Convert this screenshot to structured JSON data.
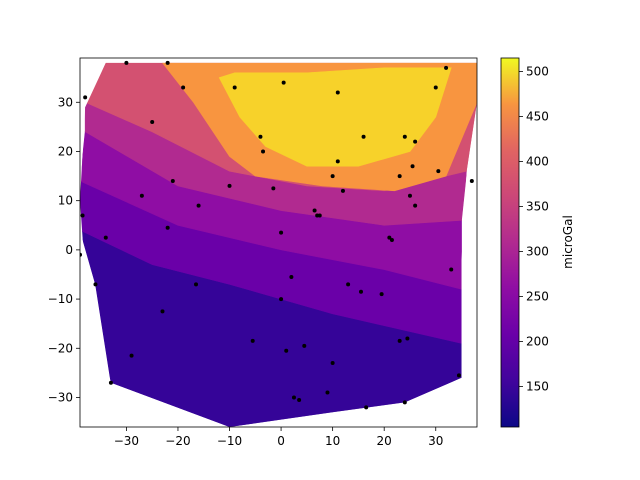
{
  "chart_data": {
    "type": "contour",
    "colormap": "plasma",
    "xlim": [
      -39,
      38
    ],
    "ylim": [
      -36,
      39
    ],
    "x_ticks": [
      -30,
      -20,
      -10,
      0,
      10,
      20,
      30
    ],
    "y_ticks": [
      -30,
      -20,
      -10,
      0,
      10,
      20,
      30
    ],
    "colorbar": {
      "label": "microGal",
      "range": [
        105,
        515
      ],
      "ticks": [
        150,
        200,
        250,
        300,
        350,
        400,
        450,
        500
      ]
    },
    "hull": [
      [
        -34,
        38
      ],
      [
        -21,
        38
      ],
      [
        38,
        38
      ],
      [
        38,
        30
      ],
      [
        36,
        16
      ],
      [
        35,
        -2
      ],
      [
        35,
        -26
      ],
      [
        24,
        -31
      ],
      [
        10,
        -33
      ],
      [
        -10,
        -36
      ],
      [
        -33,
        -27
      ],
      [
        -36,
        -15
      ],
      [
        -38,
        -5
      ],
      [
        -39,
        10
      ],
      [
        -38,
        29
      ]
    ],
    "levels": [
      {
        "value": 150,
        "color": "#350498"
      },
      {
        "value": 200,
        "color": "#6a00a8"
      },
      {
        "value": 250,
        "color": "#8f0da4"
      },
      {
        "value": 300,
        "color": "#b12a90"
      },
      {
        "value": 350,
        "color": "#d35171"
      },
      {
        "value": 400,
        "color": "#e16462"
      },
      {
        "value": 450,
        "color": "#f89540"
      },
      {
        "value": 500,
        "color": "#f7d22a"
      }
    ],
    "bands": [
      {
        "color": "#350498",
        "poly": [
          [
            -39,
            4
          ],
          [
            -36,
            -7
          ],
          [
            -33,
            -27
          ],
          [
            -10,
            -36
          ],
          [
            10,
            -33
          ],
          [
            24,
            -31
          ],
          [
            35,
            -26
          ],
          [
            35,
            -19
          ],
          [
            10,
            -13
          ],
          [
            -10,
            -7
          ],
          [
            -25,
            -3
          ],
          [
            -39,
            4
          ]
        ]
      },
      {
        "color": "#6a00a8",
        "poly": [
          [
            -39,
            4
          ],
          [
            -25,
            -3
          ],
          [
            -10,
            -7
          ],
          [
            10,
            -13
          ],
          [
            35,
            -19
          ],
          [
            35,
            -8
          ],
          [
            20,
            -4
          ],
          [
            0,
            0
          ],
          [
            -20,
            5
          ],
          [
            -39,
            14
          ],
          [
            -39,
            4
          ]
        ]
      },
      {
        "color": "#8f0da4",
        "poly": [
          [
            -39,
            14
          ],
          [
            -20,
            5
          ],
          [
            0,
            0
          ],
          [
            20,
            -4
          ],
          [
            35,
            -8
          ],
          [
            35,
            6
          ],
          [
            20,
            5
          ],
          [
            0,
            8
          ],
          [
            -20,
            13
          ],
          [
            -38,
            24
          ],
          [
            -39,
            14
          ]
        ]
      },
      {
        "color": "#b12a90",
        "poly": [
          [
            -38,
            24
          ],
          [
            -20,
            13
          ],
          [
            0,
            8
          ],
          [
            20,
            5
          ],
          [
            35,
            6
          ],
          [
            36,
            16
          ],
          [
            20,
            12
          ],
          [
            5,
            13
          ],
          [
            -10,
            16
          ],
          [
            -25,
            24
          ],
          [
            -38,
            30
          ],
          [
            -38,
            24
          ]
        ]
      },
      {
        "color": "#d35171",
        "poly": [
          [
            -38,
            30
          ],
          [
            -25,
            24
          ],
          [
            -10,
            16
          ],
          [
            5,
            13
          ],
          [
            20,
            12
          ],
          [
            36,
            16
          ],
          [
            38,
            30
          ],
          [
            38,
            38
          ],
          [
            -23,
            38
          ],
          [
            -34,
            38
          ],
          [
            -38,
            30
          ]
        ]
      },
      {
        "color": "#f89540",
        "poly": [
          [
            -23,
            38
          ],
          [
            38,
            38
          ],
          [
            38,
            30
          ],
          [
            32,
            15
          ],
          [
            22,
            12
          ],
          [
            8,
            13
          ],
          [
            -5,
            15
          ],
          [
            -10,
            19
          ],
          [
            -17,
            30
          ],
          [
            -23,
            38
          ]
        ]
      },
      {
        "color": "#f7d22a",
        "poly": [
          [
            -12,
            35
          ],
          [
            -9,
            36
          ],
          [
            5,
            36
          ],
          [
            20,
            37
          ],
          [
            33,
            37
          ],
          [
            30,
            27
          ],
          [
            25,
            20
          ],
          [
            15,
            17
          ],
          [
            5,
            17
          ],
          [
            -3,
            21
          ],
          [
            -8,
            27
          ],
          [
            -12,
            35
          ]
        ]
      }
    ],
    "points": [
      [
        -30,
        38
      ],
      [
        -22,
        38
      ],
      [
        -38,
        31
      ],
      [
        -19,
        33
      ],
      [
        -9,
        33
      ],
      [
        0.5,
        34
      ],
      [
        11,
        32
      ],
      [
        32,
        37
      ],
      [
        30,
        33
      ],
      [
        -25,
        26
      ],
      [
        -4,
        23
      ],
      [
        -3.5,
        20
      ],
      [
        16,
        23
      ],
      [
        24,
        23
      ],
      [
        26,
        22
      ],
      [
        11,
        18
      ],
      [
        -21,
        14
      ],
      [
        -10,
        13
      ],
      [
        -1.5,
        12.5
      ],
      [
        12,
        12
      ],
      [
        10,
        15
      ],
      [
        23,
        15
      ],
      [
        25.5,
        17
      ],
      [
        30.5,
        16
      ],
      [
        37,
        14
      ],
      [
        -27,
        11
      ],
      [
        -16,
        9
      ],
      [
        25,
        11
      ],
      [
        26,
        9
      ],
      [
        6.5,
        8
      ],
      [
        7,
        7
      ],
      [
        7.5,
        7
      ],
      [
        -22,
        4.5
      ],
      [
        0,
        3.5
      ],
      [
        -34,
        2.5
      ],
      [
        21,
        2.5
      ],
      [
        21.5,
        2
      ],
      [
        -38.5,
        7
      ],
      [
        -39,
        -1
      ],
      [
        33,
        -4
      ],
      [
        2,
        -5.5
      ],
      [
        -36,
        -7
      ],
      [
        -16.5,
        -7
      ],
      [
        13,
        -7
      ],
      [
        15.5,
        -8.5
      ],
      [
        19.5,
        -9
      ],
      [
        0,
        -10
      ],
      [
        -23,
        -12.5
      ],
      [
        -5.5,
        -18.5
      ],
      [
        4.5,
        -19.5
      ],
      [
        1,
        -20.5
      ],
      [
        23,
        -18.5
      ],
      [
        24.5,
        -18
      ],
      [
        10,
        -23
      ],
      [
        -29,
        -21.5
      ],
      [
        -33,
        -27
      ],
      [
        34.5,
        -25.5
      ],
      [
        9,
        -29
      ],
      [
        2.5,
        -30
      ],
      [
        3.5,
        -30.5
      ],
      [
        16.5,
        -32
      ],
      [
        24,
        -31
      ]
    ]
  }
}
